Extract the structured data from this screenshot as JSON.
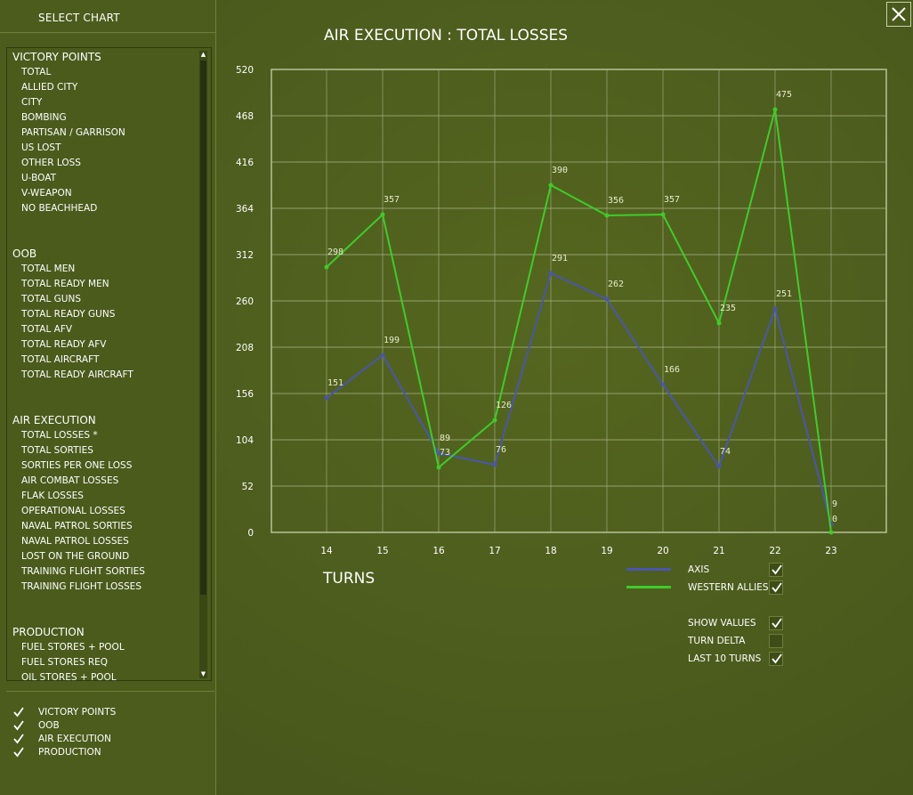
{
  "left": {
    "header": "SELECT CHART",
    "groups": [
      {
        "title": "VICTORY POINTS",
        "items": [
          "TOTAL",
          "ALLIED CITY",
          "CITY",
          "BOMBING",
          "PARTISAN / GARRISON",
          "US LOST",
          "OTHER LOSS",
          "U-BOAT",
          "V-WEAPON",
          "NO BEACHHEAD"
        ]
      },
      {
        "title": "OOB",
        "items": [
          "TOTAL MEN",
          "TOTAL READY MEN",
          "TOTAL GUNS",
          "TOTAL READY GUNS",
          "TOTAL AFV",
          "TOTAL READY AFV",
          "TOTAL AIRCRAFT",
          "TOTAL READY AIRCRAFT"
        ]
      },
      {
        "title": "AIR EXECUTION",
        "items": [
          "TOTAL LOSSES *",
          "TOTAL SORTIES",
          "SORTIES PER ONE LOSS",
          "AIR COMBAT LOSSES",
          "FLAK LOSSES",
          "OPERATIONAL LOSSES",
          "NAVAL PATROL SORTIES",
          "NAVAL PATROL LOSSES",
          "LOST ON THE GROUND",
          "TRAINING FLIGHT SORTIES",
          "TRAINING FLIGHT LOSSES"
        ]
      },
      {
        "title": "PRODUCTION",
        "items": [
          "FUEL STORES + POOL",
          "FUEL STORES REQ",
          "OIL STORES + POOL"
        ]
      }
    ],
    "filters": [
      {
        "label": "VICTORY POINTS",
        "checked": true
      },
      {
        "label": "OOB",
        "checked": true
      },
      {
        "label": "AIR EXECUTION",
        "checked": true
      },
      {
        "label": "PRODUCTION",
        "checked": true
      }
    ]
  },
  "main": {
    "title": "AIR EXECUTION : TOTAL LOSSES",
    "xlabel": "TURNS",
    "legend": [
      {
        "label": "AXIS",
        "checked": true
      },
      {
        "label": "WESTERN ALLIES",
        "checked": true
      }
    ],
    "options": [
      {
        "label": "SHOW VALUES",
        "checked": true
      },
      {
        "label": "TURN DELTA",
        "checked": false
      },
      {
        "label": "LAST 10 TURNS",
        "checked": true
      }
    ]
  },
  "chart_data": {
    "type": "line",
    "title": "AIR EXECUTION : TOTAL LOSSES",
    "xlabel": "TURNS",
    "ylabel": "",
    "x": [
      14,
      15,
      16,
      17,
      18,
      19,
      20,
      21,
      22,
      23
    ],
    "ylim": [
      0,
      520
    ],
    "yticks": [
      0,
      52,
      104,
      156,
      208,
      260,
      312,
      364,
      416,
      468,
      520
    ],
    "grid": true,
    "series": [
      {
        "name": "AXIS",
        "color": "#4a55b0",
        "values": [
          151,
          199,
          89,
          76,
          291,
          262,
          166,
          74,
          251,
          9
        ]
      },
      {
        "name": "WESTERN ALLIES",
        "color": "#3ecc2a",
        "values": [
          298,
          357,
          73,
          126,
          390,
          356,
          357,
          235,
          475,
          0
        ]
      }
    ]
  },
  "colors": {
    "axis": "#4a55b0",
    "allies": "#3ecc2a",
    "grid": "#a9b48a",
    "background": "#4b5b1d"
  }
}
